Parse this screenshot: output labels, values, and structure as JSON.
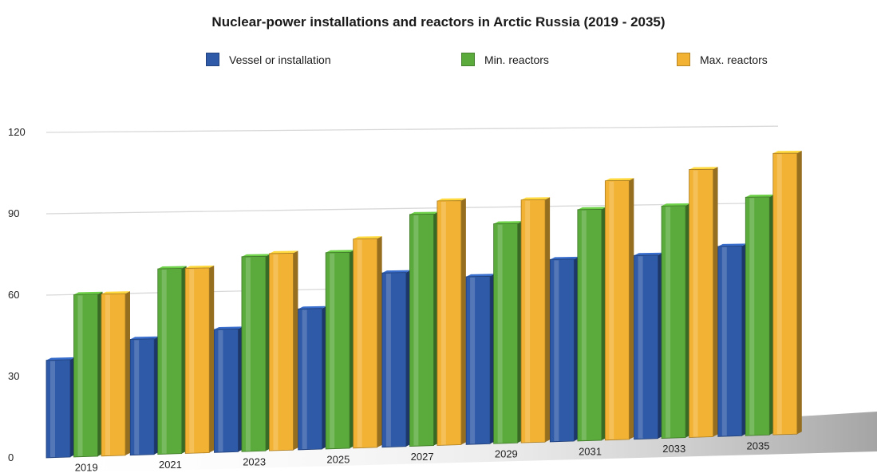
{
  "chart_data": {
    "type": "bar",
    "title": "Nuclear-power installations and reactors in Arctic Russia (2019 - 2035)",
    "xlabel": "",
    "ylabel": "",
    "categories": [
      "2019",
      "2021",
      "2023",
      "2025",
      "2027",
      "2029",
      "2031",
      "2033",
      "2035"
    ],
    "series": [
      {
        "name": "Vessel or installation",
        "color": "#2f5aa8",
        "values": [
          36,
          43,
          46,
          53,
          66,
          64,
          70,
          71,
          74
        ]
      },
      {
        "name": "Min. reactors",
        "color": "#5bab3c",
        "values": [
          60,
          69,
          73,
          74,
          88,
          84,
          89,
          90,
          93
        ]
      },
      {
        "name": "Max. reactors",
        "color": "#f2b233",
        "values": [
          60,
          69,
          74,
          79,
          93,
          93,
          100,
          104,
          110
        ]
      }
    ],
    "yticks": [
      0,
      30,
      60,
      90,
      120
    ],
    "ylim": [
      0,
      120
    ],
    "grid": true,
    "legend_position": "top"
  }
}
